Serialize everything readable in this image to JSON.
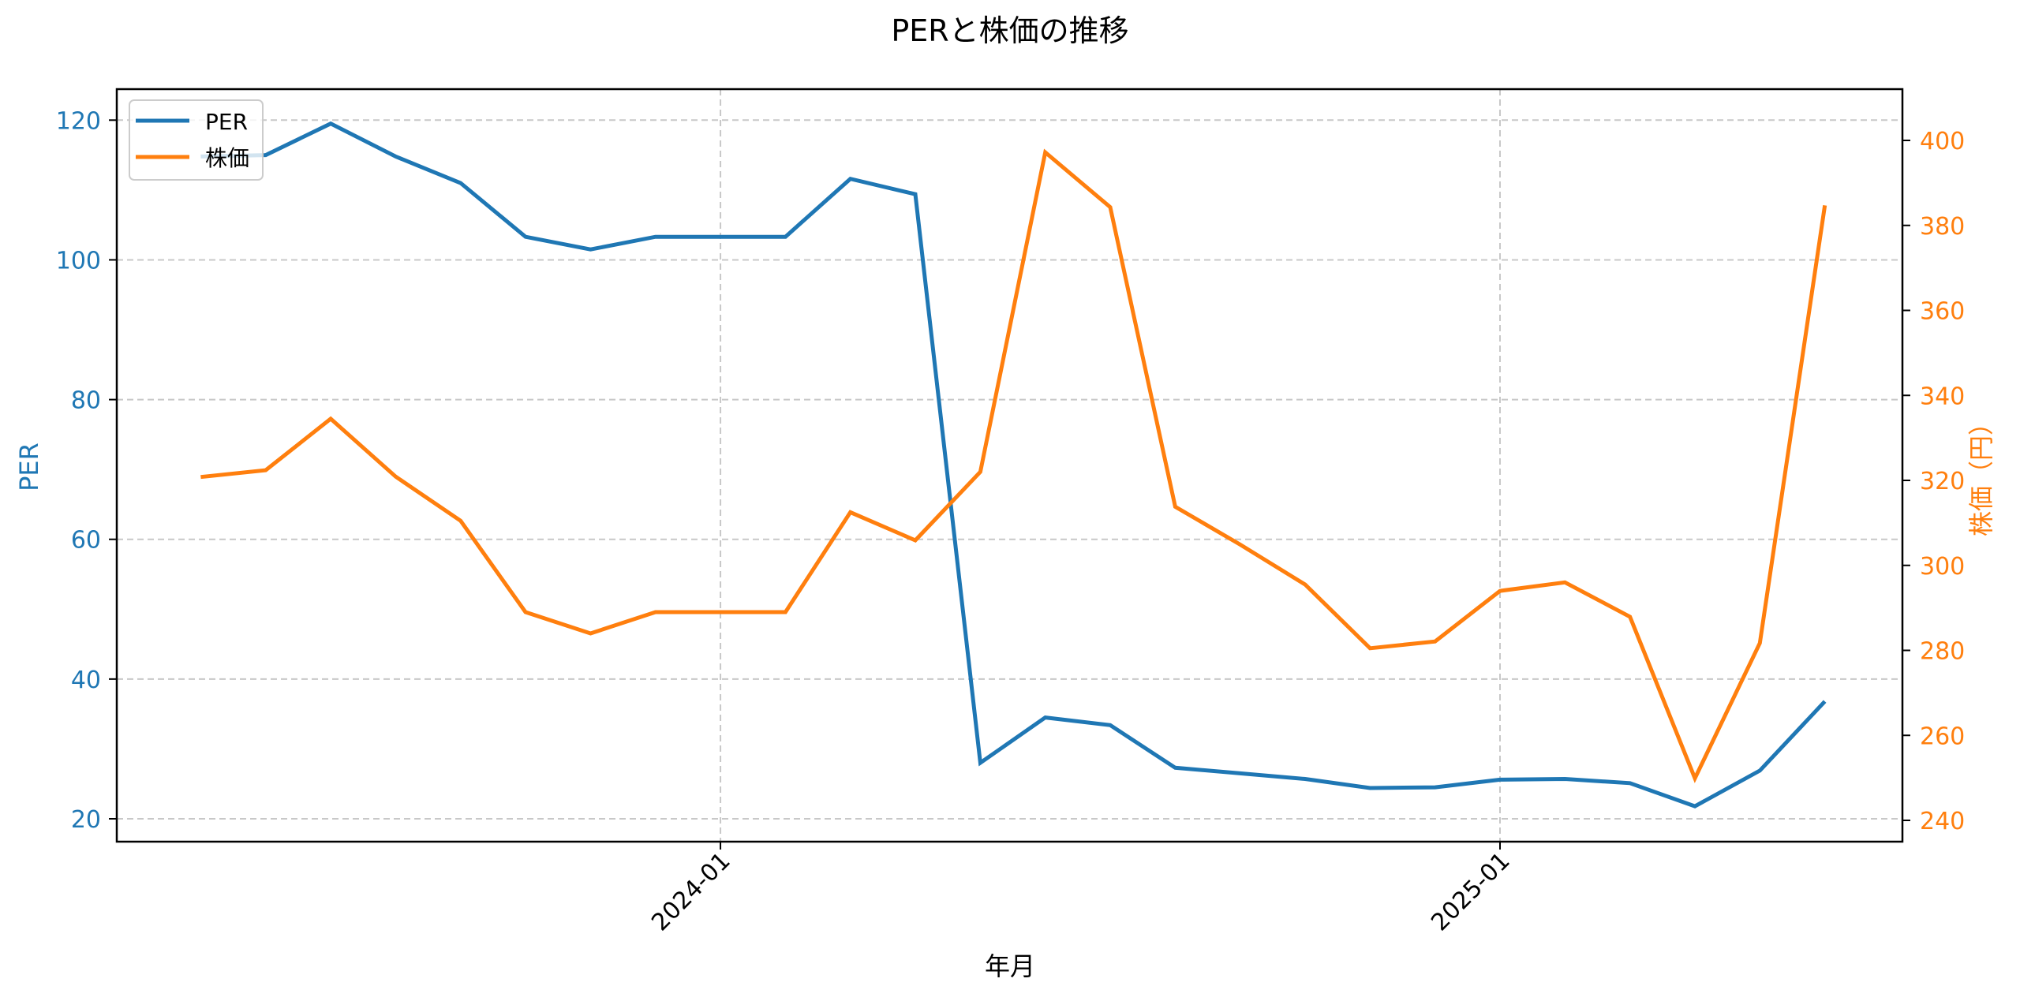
{
  "chart_data": {
    "type": "line",
    "title": "PERと株価の推移",
    "xlabel": "年月",
    "ylabel_left": "PER",
    "ylabel_right": "株価（円）",
    "x": [
      "2023-05",
      "2023-06",
      "2023-07",
      "2023-08",
      "2023-09",
      "2023-10",
      "2023-11",
      "2023-12",
      "2024-01",
      "2024-02",
      "2024-03",
      "2024-04",
      "2024-05",
      "2024-06",
      "2024-07",
      "2024-08",
      "2024-09",
      "2024-10",
      "2024-11",
      "2024-12",
      "2025-01",
      "2025-02",
      "2025-03",
      "2025-04",
      "2025-05",
      "2025-06"
    ],
    "x_ticks": [
      {
        "label": "2024-01",
        "index": 8
      },
      {
        "label": "2025-01",
        "index": 20
      }
    ],
    "series": [
      {
        "name": "PER",
        "axis": "left",
        "color": "#1f77b4",
        "values": [
          114.8,
          115.0,
          119.5,
          114.8,
          111.0,
          103.3,
          101.5,
          103.3,
          103.3,
          103.3,
          111.6,
          109.4,
          28.0,
          34.5,
          33.4,
          27.3,
          26.5,
          25.7,
          24.4,
          24.5,
          25.6,
          25.7,
          25.1,
          21.8,
          26.9,
          36.8
        ]
      },
      {
        "name": "株価",
        "axis": "right",
        "color": "#ff7f0e",
        "values": [
          320.8,
          322.4,
          334.5,
          320.9,
          310.5,
          289.0,
          284.0,
          289.0,
          289.0,
          289.0,
          312.5,
          305.9,
          322.0,
          397.2,
          384.3,
          313.8,
          304.9,
          295.5,
          280.5,
          282.1,
          294.0,
          296.0,
          287.9,
          249.9,
          281.7,
          384.7
        ]
      }
    ],
    "left_axis": {
      "ticks": [
        20,
        40,
        60,
        80,
        100,
        120
      ],
      "color": "#1f77b4"
    },
    "right_axis": {
      "ticks": [
        240,
        260,
        280,
        300,
        320,
        340,
        360,
        380,
        400
      ],
      "color": "#ff7f0e"
    },
    "grid": true,
    "legend_position": "upper left"
  }
}
